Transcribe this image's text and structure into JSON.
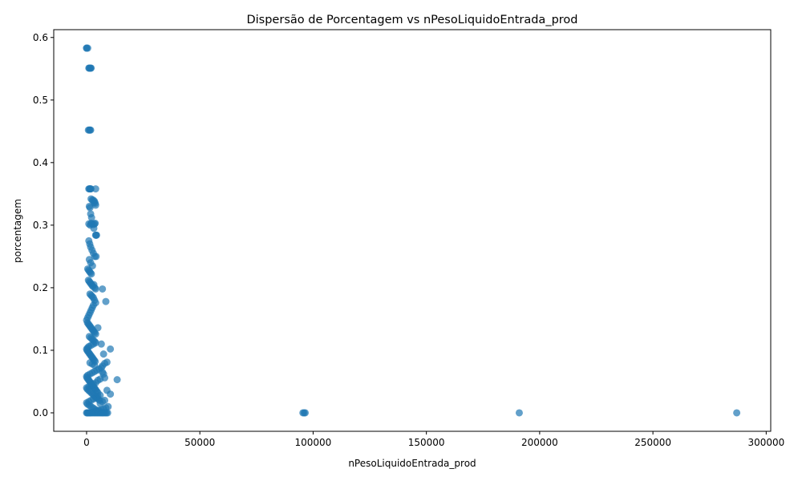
{
  "chart_data": {
    "type": "scatter",
    "title": "Dispersão de Porcentagem vs nPesoLiquidoEntrada_prod",
    "xlabel": "nPesoLiquidoEntrada_prod",
    "ylabel": "porcentagem",
    "xlim": [
      -14500,
      302000
    ],
    "ylim": [
      -0.0295,
      0.6125
    ],
    "xticks": [
      0,
      50000,
      100000,
      150000,
      200000,
      250000,
      300000
    ],
    "xtick_labels": [
      "0",
      "50000",
      "100000",
      "150000",
      "200000",
      "250000",
      "300000"
    ],
    "yticks": [
      0.0,
      0.1,
      0.2,
      0.3,
      0.4,
      0.5,
      0.6
    ],
    "ytick_labels": [
      "0.0",
      "0.1",
      "0.2",
      "0.3",
      "0.4",
      "0.5",
      "0.6"
    ],
    "grid": false,
    "legend": "none",
    "color": "#1f77b4",
    "series": [
      {
        "x": [
          0,
          500,
          0,
          1000,
          1500,
          1200,
          1800,
          2000,
          800,
          1500,
          1200,
          1800,
          1000,
          1500,
          1700,
          1300,
          1900,
          4000,
          2000,
          2500,
          3000,
          3500,
          4000,
          3200,
          3800,
          1200,
          1500,
          1800,
          2200,
          1000,
          1600,
          2000,
          2400,
          3000,
          3500,
          3800,
          3200,
          4000,
          4200,
          4400,
          1000,
          1400,
          1800,
          2400,
          3000,
          3600,
          4200,
          1200,
          1800,
          2600,
          500,
          900,
          1300,
          1700,
          2100,
          800,
          1200,
          1600,
          2000,
          2400,
          2800,
          3200,
          3600,
          4000,
          1500,
          2000,
          2500,
          3000,
          3500,
          7000,
          8500,
          4000,
          3000,
          2500,
          2000,
          1500,
          1000,
          500,
          0,
          400,
          800,
          1200,
          1600,
          2000,
          2400,
          2800,
          3200,
          3600,
          4000,
          1200,
          1800,
          2400,
          3000,
          3600,
          5000,
          4000,
          3000,
          2000,
          1000,
          500,
          0,
          200,
          600,
          1000,
          1400,
          1800,
          2200,
          2600,
          3000,
          3400,
          3800,
          1500,
          2500,
          3500,
          6500,
          10500,
          7500,
          9000,
          8000,
          7000,
          6500,
          5500,
          4500,
          3500,
          2500,
          1500,
          500,
          0,
          200,
          600,
          1000,
          1400,
          1800,
          2200,
          2600,
          3000,
          3400,
          3800,
          4200,
          4600,
          5000,
          7000,
          7500,
          8000,
          6000,
          5000,
          4000,
          3000,
          2000,
          1000,
          0,
          300,
          900,
          1500,
          2100,
          2700,
          3300,
          3900,
          4500,
          5100,
          5700,
          13500,
          9000,
          10500,
          6000,
          5000,
          4000,
          3000,
          2000,
          1000,
          0,
          400,
          1200,
          2000,
          2800,
          3600,
          4400,
          5200,
          6000,
          7000,
          8000,
          9500,
          8500,
          7500,
          6500,
          5500,
          4500,
          3500,
          2500,
          1500,
          500,
          0,
          300,
          800,
          1300,
          1800,
          2300,
          2800,
          3300,
          3800,
          4300,
          4800,
          5300,
          5800,
          6300,
          6800,
          7300,
          7800,
          8300,
          8800,
          9300,
          96000,
          95500,
          96500,
          191000,
          287000
        ],
        "y": [
          0.583,
          0.583,
          0.583,
          0.551,
          0.551,
          0.551,
          0.551,
          0.551,
          0.452,
          0.452,
          0.452,
          0.452,
          0.358,
          0.358,
          0.358,
          0.358,
          0.358,
          0.358,
          0.342,
          0.34,
          0.34,
          0.338,
          0.332,
          0.336,
          0.335,
          0.33,
          0.328,
          0.318,
          0.312,
          0.302,
          0.3,
          0.303,
          0.302,
          0.301,
          0.302,
          0.303,
          0.295,
          0.284,
          0.284,
          0.284,
          0.275,
          0.27,
          0.265,
          0.26,
          0.255,
          0.25,
          0.25,
          0.245,
          0.24,
          0.235,
          0.23,
          0.228,
          0.226,
          0.224,
          0.222,
          0.212,
          0.21,
          0.208,
          0.206,
          0.204,
          0.202,
          0.205,
          0.2,
          0.198,
          0.19,
          0.188,
          0.186,
          0.184,
          0.18,
          0.198,
          0.178,
          0.176,
          0.172,
          0.168,
          0.164,
          0.16,
          0.156,
          0.152,
          0.148,
          0.144,
          0.142,
          0.14,
          0.138,
          0.136,
          0.134,
          0.132,
          0.13,
          0.128,
          0.126,
          0.122,
          0.12,
          0.118,
          0.116,
          0.114,
          0.136,
          0.112,
          0.11,
          0.108,
          0.106,
          0.104,
          0.102,
          0.1,
          0.098,
          0.096,
          0.094,
          0.092,
          0.09,
          0.088,
          0.086,
          0.084,
          0.082,
          0.08,
          0.078,
          0.076,
          0.11,
          0.102,
          0.094,
          0.081,
          0.079,
          0.075,
          0.072,
          0.07,
          0.068,
          0.066,
          0.064,
          0.062,
          0.06,
          0.058,
          0.056,
          0.054,
          0.052,
          0.05,
          0.048,
          0.046,
          0.044,
          0.042,
          0.04,
          0.038,
          0.036,
          0.034,
          0.032,
          0.065,
          0.062,
          0.056,
          0.054,
          0.052,
          0.048,
          0.046,
          0.044,
          0.042,
          0.04,
          0.038,
          0.036,
          0.034,
          0.032,
          0.03,
          0.028,
          0.026,
          0.024,
          0.022,
          0.02,
          0.053,
          0.036,
          0.03,
          0.028,
          0.026,
          0.024,
          0.022,
          0.02,
          0.018,
          0.016,
          0.014,
          0.012,
          0.01,
          0.008,
          0.006,
          0.004,
          0.003,
          0.015,
          0.018,
          0.02,
          0.01,
          0.008,
          0.006,
          0.005,
          0.004,
          0.003,
          0.002,
          0.001,
          0.0,
          0.0,
          0.0,
          0.0,
          0.0,
          0.0,
          0.0,
          0.0,
          0.0,
          0.0,
          0.0,
          0.0,
          0.0,
          0.0,
          0.0,
          0.0,
          0.0,
          0.0,
          0.0,
          0.0,
          0.0,
          0.0,
          0.0,
          0.0,
          0.0,
          0.0,
          0.0
        ]
      }
    ]
  }
}
